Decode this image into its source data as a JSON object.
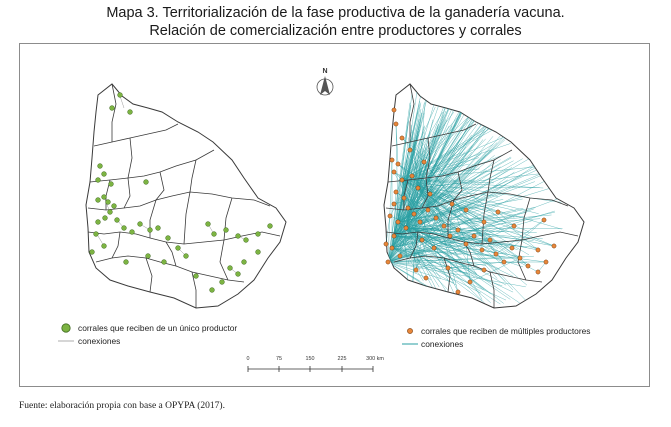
{
  "title": {
    "line1": "Mapa 3. Territorialización de la fase productiva de la ganadería vacuna.",
    "line2": "Relación de comercialización entre productores y corrales"
  },
  "north_label": "N",
  "left_map": {
    "legend": {
      "points_label": "corrales que reciben de un único productor",
      "lines_label": "conexiones"
    }
  },
  "right_map": {
    "legend": {
      "points_label": "corrales que reciben de múltiples productores",
      "lines_label": "conexiones"
    }
  },
  "scale_bar": {
    "ticks": [
      "0",
      "75",
      "150",
      "225",
      "300 km"
    ]
  },
  "source": "Fuente: elaboración propia con base a OPYPA (2017).",
  "colors": {
    "single_point": "#7cb342",
    "multi_point": "#e8873a",
    "connection_line": "#2a9fa3",
    "border": "#3a3a3a"
  }
}
